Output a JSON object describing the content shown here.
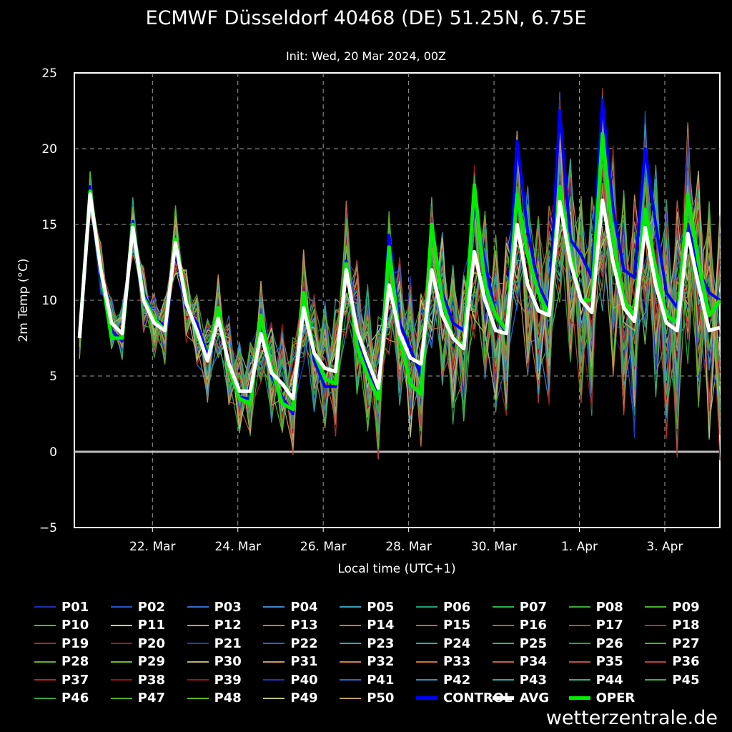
{
  "chart_data": {
    "type": "line",
    "title": "ECMWF Düsseldorf 40468 (DE) 51.25N, 6.75E",
    "subtitle": "Init: Wed, 20 Mar 2024, 00Z",
    "xlabel": "Local time (UTC+1)",
    "ylabel": "2m Temp (°C)",
    "ylim": [
      -5,
      25
    ],
    "xlim_days": [
      0,
      15.12
    ],
    "yticks": [
      "25",
      "20",
      "15",
      "10",
      "5",
      "0",
      "−5"
    ],
    "ytick_values": [
      25,
      20,
      15,
      10,
      5,
      0,
      -5
    ],
    "xticks": [
      "22. Mar",
      "24. Mar",
      "26. Mar",
      "28. Mar",
      "30. Mar",
      "1. Apr",
      "3. Apr"
    ],
    "xtick_days": [
      1.83,
      3.83,
      5.83,
      7.83,
      9.83,
      11.83,
      13.83
    ],
    "grid": true,
    "legend_position": "bottom",
    "x": [
      0.12,
      0.37,
      0.62,
      0.87,
      1.12,
      1.37,
      1.62,
      1.87,
      2.12,
      2.37,
      2.62,
      2.87,
      3.12,
      3.37,
      3.62,
      3.87,
      4.12,
      4.37,
      4.62,
      4.87,
      5.12,
      5.37,
      5.62,
      5.87,
      6.12,
      6.37,
      6.62,
      6.87,
      7.12,
      7.37,
      7.62,
      7.87,
      8.12,
      8.37,
      8.62,
      8.87,
      9.12,
      9.37,
      9.62,
      9.87,
      10.12,
      10.37,
      10.62,
      10.87,
      11.12,
      11.37,
      11.62,
      11.87,
      12.12,
      12.37,
      12.62,
      12.87,
      13.12,
      13.37,
      13.62,
      13.87,
      14.12,
      14.37,
      14.62,
      14.87,
      15.12
    ],
    "series": [
      {
        "name": "AVG",
        "color": "#ffffff",
        "width": 5,
        "values": [
          7.5,
          17.0,
          12.0,
          8.5,
          7.8,
          14.8,
          10.0,
          8.5,
          8.0,
          13.8,
          9.8,
          8.0,
          6.0,
          8.8,
          5.8,
          4.0,
          4.0,
          7.8,
          5.2,
          4.5,
          3.5,
          9.5,
          6.5,
          5.5,
          5.3,
          12.0,
          8.0,
          6.0,
          4.2,
          11.0,
          7.8,
          6.2,
          5.8,
          12.0,
          9.0,
          7.5,
          6.8,
          13.2,
          10.0,
          8.0,
          7.8,
          15.0,
          11.0,
          9.3,
          9.0,
          16.5,
          12.5,
          10.0,
          9.2,
          16.6,
          12.5,
          9.5,
          8.6,
          14.8,
          11.0,
          8.5,
          8.0,
          14.4,
          11.0,
          8.0,
          8.2
        ]
      },
      {
        "name": "CONTROL",
        "color": "#0000ff",
        "width": 4,
        "values": [
          7.5,
          17.5,
          11.5,
          8.0,
          7.3,
          15.2,
          10.5,
          8.8,
          8.3,
          13.5,
          9.5,
          8.5,
          6.3,
          9.0,
          5.5,
          3.6,
          3.5,
          8.5,
          5.0,
          3.6,
          2.5,
          10.0,
          6.0,
          4.3,
          4.3,
          12.6,
          7.5,
          5.5,
          3.6,
          14.3,
          8.5,
          6.8,
          5.0,
          14.6,
          10.5,
          8.5,
          8.0,
          16.5,
          12.5,
          9.0,
          7.8,
          20.5,
          14.5,
          11.0,
          9.5,
          22.5,
          14.0,
          13.0,
          11.5,
          23.2,
          16.0,
          12.0,
          11.5,
          20.0,
          15.0,
          10.5,
          9.5,
          15.0,
          12.0,
          10.5,
          10.0
        ]
      },
      {
        "name": "OPER",
        "color": "#00ee00",
        "width": 5,
        "values": [
          7.5,
          17.2,
          12.0,
          7.5,
          7.5,
          15.0,
          10.2,
          8.8,
          8.0,
          14.0,
          10.0,
          7.8,
          6.0,
          9.5,
          5.5,
          3.5,
          3.2,
          9.0,
          5.5,
          3.2,
          2.8,
          10.5,
          6.5,
          4.8,
          4.5,
          12.4,
          7.0,
          5.0,
          3.5,
          13.5,
          7.5,
          4.5,
          3.8,
          15.0,
          10.0,
          7.5,
          7.0,
          17.6,
          11.0,
          9.0,
          8.0,
          17.0,
          13.0,
          10.5,
          9.0,
          17.5,
          13.0,
          10.0,
          10.0,
          21.0,
          14.0,
          10.0,
          9.0,
          16.0,
          12.0,
          9.0,
          8.5,
          17.0,
          12.5,
          9.0,
          10.0
        ]
      }
    ],
    "members": {
      "names": [
        "P01",
        "P02",
        "P03",
        "P04",
        "P05",
        "P06",
        "P07",
        "P08",
        "P09",
        "P10",
        "P11",
        "P12",
        "P13",
        "P14",
        "P15",
        "P16",
        "P17",
        "P18",
        "P19",
        "P20",
        "P21",
        "P22",
        "P23",
        "P24",
        "P25",
        "P26",
        "P27",
        "P28",
        "P29",
        "P30",
        "P31",
        "P32",
        "P33",
        "P34",
        "P35",
        "P36",
        "P37",
        "P38",
        "P39",
        "P40",
        "P41",
        "P42",
        "P43",
        "P44",
        "P45",
        "P46",
        "P47",
        "P48",
        "P49",
        "P50"
      ],
      "colors": [
        "#1a2fb0",
        "#2457c8",
        "#2f6fcf",
        "#3b86c9",
        "#2aa0b8",
        "#22a07a",
        "#2eb04a",
        "#39a838",
        "#43b02a",
        "#4fc02a",
        "#c8c8a0",
        "#c8a060",
        "#c08040",
        "#d07a30",
        "#c06848",
        "#c05a40",
        "#b84a40",
        "#a83a38",
        "#b02828",
        "#a01818",
        "#1a40c0",
        "#3060d0",
        "#3fa0c0",
        "#30b0a0",
        "#40b060",
        "#30a040",
        "#50b040",
        "#60b030",
        "#70b828",
        "#c0b070",
        "#d09a50",
        "#d08040",
        "#d07030",
        "#c86040",
        "#c05040",
        "#b84040",
        "#c02020",
        "#a01010",
        "#901818",
        "#2030c8",
        "#2868d0",
        "#3090c0",
        "#30a8a8",
        "#30b080",
        "#40b050",
        "#38a838",
        "#48b030",
        "#58b828",
        "#c0c080",
        "#c0a060"
      ],
      "mean_series": "AVG",
      "spread_pattern": [
        -1.6,
        1.3,
        0.4,
        -2.4,
        1.9,
        -0.7,
        2.6,
        -1.1,
        0.9,
        -2.0,
        2.2,
        -0.3,
        1.6,
        -2.7,
        0.2,
        -1.4,
        2.9,
        -0.9,
        1.1,
        -1.8,
        2.4,
        -0.5,
        1.7,
        -2.2,
        0.6,
        -1.2,
        2.0,
        -0.1,
        1.4,
        -2.5,
        0.8,
        -1.7,
        2.7,
        -0.6,
        1.2,
        -2.1,
        0.3,
        -1.0,
        2.3,
        -0.4,
        1.8,
        -2.6,
        0.5,
        -1.5,
        2.5,
        -0.8,
        1.0,
        -1.9,
        2.1,
        -0.2
      ]
    }
  },
  "legend": [
    {
      "name": "P01",
      "color": "#1a2fb0"
    },
    {
      "name": "P02",
      "color": "#2457c8"
    },
    {
      "name": "P03",
      "color": "#2f6fcf"
    },
    {
      "name": "P04",
      "color": "#3b86c9"
    },
    {
      "name": "P05",
      "color": "#2aa0b8"
    },
    {
      "name": "P06",
      "color": "#22a07a"
    },
    {
      "name": "P07",
      "color": "#2eb04a"
    },
    {
      "name": "P08",
      "color": "#39a838"
    },
    {
      "name": "P09",
      "color": "#43b02a"
    },
    {
      "name": "P10",
      "color": "#4fc02a"
    },
    {
      "name": "P11",
      "color": "#c8c8a0"
    },
    {
      "name": "P12",
      "color": "#c8a060"
    },
    {
      "name": "P13",
      "color": "#c08040"
    },
    {
      "name": "P14",
      "color": "#d07a30"
    },
    {
      "name": "P15",
      "color": "#c06848"
    },
    {
      "name": "P16",
      "color": "#c05a40"
    },
    {
      "name": "P17",
      "color": "#b84a40"
    },
    {
      "name": "P18",
      "color": "#a83a38"
    },
    {
      "name": "P19",
      "color": "#b02828"
    },
    {
      "name": "P20",
      "color": "#a01818"
    },
    {
      "name": "P21",
      "color": "#1a40c0"
    },
    {
      "name": "P22",
      "color": "#3060d0"
    },
    {
      "name": "P23",
      "color": "#3fa0c0"
    },
    {
      "name": "P24",
      "color": "#30b0a0"
    },
    {
      "name": "P25",
      "color": "#40b060"
    },
    {
      "name": "P26",
      "color": "#30a040"
    },
    {
      "name": "P27",
      "color": "#50b040"
    },
    {
      "name": "P28",
      "color": "#60b030"
    },
    {
      "name": "P29",
      "color": "#70b828"
    },
    {
      "name": "P30",
      "color": "#c0b070"
    },
    {
      "name": "P31",
      "color": "#d09a50"
    },
    {
      "name": "P32",
      "color": "#d08040"
    },
    {
      "name": "P33",
      "color": "#d07030"
    },
    {
      "name": "P34",
      "color": "#c86040"
    },
    {
      "name": "P35",
      "color": "#c05040"
    },
    {
      "name": "P36",
      "color": "#b84040"
    },
    {
      "name": "P37",
      "color": "#c02020"
    },
    {
      "name": "P38",
      "color": "#a01010"
    },
    {
      "name": "P39",
      "color": "#901818"
    },
    {
      "name": "P40",
      "color": "#2030c8"
    },
    {
      "name": "P41",
      "color": "#2868d0"
    },
    {
      "name": "P42",
      "color": "#3090c0"
    },
    {
      "name": "P43",
      "color": "#30a8a8"
    },
    {
      "name": "P44",
      "color": "#30b080"
    },
    {
      "name": "P45",
      "color": "#40b050"
    },
    {
      "name": "P46",
      "color": "#38a838"
    },
    {
      "name": "P47",
      "color": "#48b030"
    },
    {
      "name": "P48",
      "color": "#58b828"
    },
    {
      "name": "P49",
      "color": "#c0c080"
    },
    {
      "name": "P50",
      "color": "#c0a060"
    },
    {
      "name": "CONTROL",
      "color": "#0000ff",
      "thick": true
    },
    {
      "name": "AVG",
      "color": "#ffffff",
      "thick": true
    },
    {
      "name": "OPER",
      "color": "#00ee00",
      "thick": true
    }
  ],
  "credit": "wetterzentrale.de"
}
